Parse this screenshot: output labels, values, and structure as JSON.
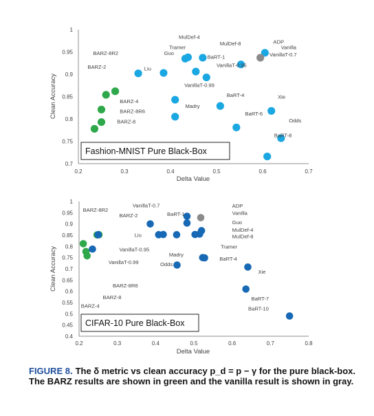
{
  "colors": {
    "top_point": "#1aa7e2",
    "bottom_point": "#1769b5",
    "barz": "#2ea84a",
    "vanilla": "#8a8a8a",
    "axis": "#8c8c8c",
    "text": "#404040",
    "leader": "#7f7f7f",
    "caption_label": "#1e4e9c"
  },
  "chart_data": [
    {
      "type": "scatter",
      "box_label": "Fashion-MNIST Pure Black-Box",
      "xlabel": "Delta Value",
      "ylabel": "Clean Accuracy",
      "xlim": [
        0.2,
        0.7
      ],
      "ylim": [
        0.7,
        1.0
      ],
      "xticks": [
        "0.2",
        "0.3",
        "0.4",
        "0.5",
        "0.6",
        "0.7"
      ],
      "yticks": [
        "0.7",
        "0.75",
        "0.8",
        "0.85",
        "0.9",
        "0.95",
        "1"
      ],
      "grid": false,
      "points": [
        {
          "x": 0.28,
          "y": 0.862,
          "group": "barz"
        },
        {
          "x": 0.26,
          "y": 0.854,
          "group": "barz"
        },
        {
          "x": 0.25,
          "y": 0.821,
          "group": "barz"
        },
        {
          "x": 0.25,
          "y": 0.793,
          "group": "barz"
        },
        {
          "x": 0.235,
          "y": 0.778,
          "group": "barz"
        },
        {
          "x": 0.33,
          "y": 0.902,
          "group": "main"
        },
        {
          "x": 0.385,
          "y": 0.903,
          "group": "main"
        },
        {
          "x": 0.432,
          "y": 0.935,
          "group": "main"
        },
        {
          "x": 0.438,
          "y": 0.938,
          "group": "main"
        },
        {
          "x": 0.47,
          "y": 0.937,
          "group": "main"
        },
        {
          "x": 0.455,
          "y": 0.906,
          "group": "main"
        },
        {
          "x": 0.478,
          "y": 0.893,
          "group": "main"
        },
        {
          "x": 0.41,
          "y": 0.843,
          "group": "main"
        },
        {
          "x": 0.508,
          "y": 0.829,
          "group": "main"
        },
        {
          "x": 0.41,
          "y": 0.805,
          "group": "main"
        },
        {
          "x": 0.543,
          "y": 0.781,
          "group": "main"
        },
        {
          "x": 0.553,
          "y": 0.922,
          "group": "main"
        },
        {
          "x": 0.605,
          "y": 0.948,
          "group": "main"
        },
        {
          "x": 0.595,
          "y": 0.937,
          "group": "vanilla"
        },
        {
          "x": 0.619,
          "y": 0.818,
          "group": "main"
        },
        {
          "x": 0.64,
          "y": 0.757,
          "group": "main"
        },
        {
          "x": 0.61,
          "y": 0.716,
          "group": "main"
        }
      ],
      "labels": [
        {
          "text": "MulDef-4",
          "x": 0.418,
          "y": 0.984
        },
        {
          "text": "MulDef-8",
          "x": 0.507,
          "y": 0.969
        },
        {
          "text": "ADP",
          "x": 0.623,
          "y": 0.973
        },
        {
          "text": "Vanilla",
          "x": 0.64,
          "y": 0.961
        },
        {
          "text": "Tramer",
          "x": 0.397,
          "y": 0.961
        },
        {
          "text": "BARZ-8R2",
          "x": 0.232,
          "y": 0.948
        },
        {
          "text": "Guo",
          "x": 0.386,
          "y": 0.948
        },
        {
          "text": "VanillaT-0.7",
          "x": 0.615,
          "y": 0.945
        },
        {
          "text": "BaRT-1",
          "x": 0.48,
          "y": 0.939
        },
        {
          "text": "BARZ-2",
          "x": 0.22,
          "y": 0.917
        },
        {
          "text": "VanillaT-0.95",
          "x": 0.5,
          "y": 0.921
        },
        {
          "text": "Liu",
          "x": 0.343,
          "y": 0.913
        },
        {
          "text": "VanillaT-0.99",
          "x": 0.43,
          "y": 0.876
        },
        {
          "text": "BaRT-4",
          "x": 0.522,
          "y": 0.854
        },
        {
          "text": "Xie",
          "x": 0.633,
          "y": 0.85
        },
        {
          "text": "BARZ-4",
          "x": 0.29,
          "y": 0.84
        },
        {
          "text": "Madry",
          "x": 0.432,
          "y": 0.829
        },
        {
          "text": "BARZ-8R6",
          "x": 0.29,
          "y": 0.818
        },
        {
          "text": "BaRT-6",
          "x": 0.562,
          "y": 0.812
        },
        {
          "text": "BARZ-8",
          "x": 0.284,
          "y": 0.795
        },
        {
          "text": "Odds",
          "x": 0.657,
          "y": 0.797
        },
        {
          "text": "BaRT-8",
          "x": 0.625,
          "y": 0.764
        }
      ]
    },
    {
      "type": "scatter",
      "box_label": "CIFAR-10 Pure Black-Box",
      "xlabel": "Delta Value",
      "ylabel": "Clean Accuracy",
      "xlim": [
        0.2,
        0.8
      ],
      "ylim": [
        0.4,
        1.0
      ],
      "xticks": [
        "0.2",
        "0.3",
        "0.4",
        "0.5",
        "0.6",
        "0.7",
        "0.8"
      ],
      "yticks": [
        "0.4",
        "0.45",
        "0.5",
        "0.55",
        "0.6",
        "0.65",
        "0.7",
        "0.75",
        "0.8",
        "0.85",
        "0.9",
        "0.95",
        "1"
      ],
      "grid": false,
      "points": [
        {
          "x": 0.247,
          "y": 0.851,
          "group": "barz"
        },
        {
          "x": 0.252,
          "y": 0.852,
          "group": "barz"
        },
        {
          "x": 0.211,
          "y": 0.812,
          "group": "barz"
        },
        {
          "x": 0.218,
          "y": 0.777,
          "group": "barz"
        },
        {
          "x": 0.221,
          "y": 0.758,
          "group": "barz"
        },
        {
          "x": 0.25,
          "y": 0.852,
          "group": "main"
        },
        {
          "x": 0.386,
          "y": 0.9,
          "group": "main"
        },
        {
          "x": 0.408,
          "y": 0.852,
          "group": "main"
        },
        {
          "x": 0.455,
          "y": 0.852,
          "group": "main"
        },
        {
          "x": 0.235,
          "y": 0.788,
          "group": "main"
        },
        {
          "x": 0.42,
          "y": 0.853,
          "group": "main"
        },
        {
          "x": 0.482,
          "y": 0.934,
          "group": "main"
        },
        {
          "x": 0.518,
          "y": 0.928,
          "group": "vanilla"
        },
        {
          "x": 0.482,
          "y": 0.904,
          "group": "main"
        },
        {
          "x": 0.52,
          "y": 0.87,
          "group": "main"
        },
        {
          "x": 0.515,
          "y": 0.855,
          "group": "main"
        },
        {
          "x": 0.503,
          "y": 0.853,
          "group": "main"
        },
        {
          "x": 0.523,
          "y": 0.75,
          "group": "main"
        },
        {
          "x": 0.528,
          "y": 0.749,
          "group": "main"
        },
        {
          "x": 0.456,
          "y": 0.717,
          "group": "main"
        },
        {
          "x": 0.641,
          "y": 0.708,
          "group": "main"
        },
        {
          "x": 0.636,
          "y": 0.61,
          "group": "main"
        },
        {
          "x": 0.75,
          "y": 0.49,
          "group": "main"
        }
      ],
      "labels": [
        {
          "text": "VanillaT-0.7",
          "x": 0.34,
          "y": 0.983
        },
        {
          "text": "ADP",
          "x": 0.6,
          "y": 0.982
        },
        {
          "text": "BARZ-8R2",
          "x": 0.21,
          "y": 0.963
        },
        {
          "text": "BARZ-2",
          "x": 0.305,
          "y": 0.939
        },
        {
          "text": "BaRT-1",
          "x": 0.43,
          "y": 0.945
        },
        {
          "text": "Vanilla",
          "x": 0.6,
          "y": 0.95
        },
        {
          "text": "Guo",
          "x": 0.6,
          "y": 0.908
        },
        {
          "text": "MulDef-4",
          "x": 0.6,
          "y": 0.875
        },
        {
          "text": "Liu",
          "x": 0.345,
          "y": 0.851
        },
        {
          "text": "MulDef-8",
          "x": 0.6,
          "y": 0.845
        },
        {
          "text": "Tramer",
          "x": 0.57,
          "y": 0.8
        },
        {
          "text": "VanillaT-0.95",
          "x": 0.305,
          "y": 0.788
        },
        {
          "text": "Madry",
          "x": 0.435,
          "y": 0.764
        },
        {
          "text": "BaRT-4",
          "x": 0.567,
          "y": 0.746
        },
        {
          "text": "VanillaT-0.99",
          "x": 0.277,
          "y": 0.73
        },
        {
          "text": "Odds",
          "x": 0.412,
          "y": 0.722
        },
        {
          "text": "Xie",
          "x": 0.668,
          "y": 0.688
        },
        {
          "text": "BARZ-8R6",
          "x": 0.288,
          "y": 0.626
        },
        {
          "text": "BARZ-8",
          "x": 0.262,
          "y": 0.575
        },
        {
          "text": "BaRT-7",
          "x": 0.65,
          "y": 0.569
        },
        {
          "text": "BARZ-4",
          "x": 0.205,
          "y": 0.536
        },
        {
          "text": "BaRT-10",
          "x": 0.642,
          "y": 0.524
        }
      ]
    }
  ],
  "caption": {
    "label": "FIGURE 8.",
    "text": "The δ metric vs clean accuracy p_d = p − γ for the pure black-box. The BARZ results are shown in green and the vanilla result is shown in gray."
  }
}
